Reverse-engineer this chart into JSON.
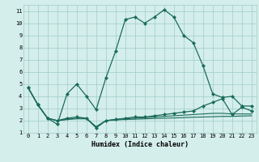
{
  "title": "",
  "xlabel": "Humidex (Indice chaleur)",
  "xlim": [
    -0.5,
    23.5
  ],
  "ylim": [
    1,
    11.5
  ],
  "yticks": [
    1,
    2,
    3,
    4,
    5,
    6,
    7,
    8,
    9,
    10,
    11
  ],
  "xticks": [
    0,
    1,
    2,
    3,
    4,
    5,
    6,
    7,
    8,
    9,
    10,
    11,
    12,
    13,
    14,
    15,
    16,
    17,
    18,
    19,
    20,
    21,
    22,
    23
  ],
  "background_color": "#d4eeeb",
  "grid_color": "#9eccc7",
  "line_color": "#1a6b5a",
  "series0": [
    4.7,
    3.3,
    2.2,
    1.7,
    4.2,
    5.0,
    4.0,
    2.9,
    5.5,
    7.7,
    10.3,
    10.5,
    10.0,
    10.5,
    11.1,
    10.5,
    9.0,
    8.4,
    6.5,
    4.2,
    3.9,
    4.0,
    3.2,
    3.2
  ],
  "series1": [
    4.7,
    3.3,
    2.2,
    2.0,
    2.2,
    2.3,
    2.2,
    1.4,
    2.0,
    2.1,
    2.2,
    2.3,
    2.3,
    2.4,
    2.5,
    2.6,
    2.7,
    2.8,
    3.2,
    3.5,
    3.8,
    2.5,
    3.1,
    2.8
  ],
  "series2": [
    4.7,
    3.3,
    2.2,
    2.0,
    2.1,
    2.2,
    2.2,
    1.5,
    2.0,
    2.1,
    2.15,
    2.2,
    2.25,
    2.3,
    2.35,
    2.4,
    2.45,
    2.5,
    2.55,
    2.6,
    2.6,
    2.55,
    2.55,
    2.55
  ],
  "series3": [
    4.7,
    3.3,
    2.2,
    2.0,
    2.1,
    2.15,
    2.15,
    1.5,
    2.0,
    2.05,
    2.1,
    2.12,
    2.15,
    2.18,
    2.2,
    2.22,
    2.25,
    2.28,
    2.3,
    2.32,
    2.35,
    2.35,
    2.38,
    2.4
  ]
}
